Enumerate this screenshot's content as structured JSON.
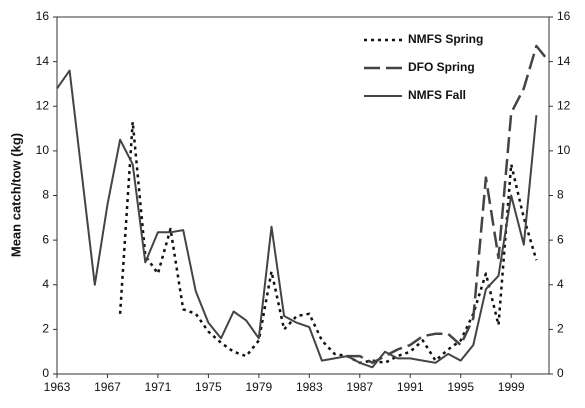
{
  "chart_data": {
    "type": "line",
    "y_label": "Mean catch/tow (kg)",
    "x": [
      1963,
      1964,
      1965,
      1966,
      1967,
      1968,
      1969,
      1970,
      1971,
      1972,
      1973,
      1974,
      1975,
      1976,
      1977,
      1978,
      1979,
      1980,
      1981,
      1982,
      1983,
      1984,
      1985,
      1986,
      1987,
      1988,
      1989,
      1990,
      1991,
      1992,
      1993,
      1994,
      1995,
      1996,
      1997,
      1998,
      1999,
      2000,
      2001,
      2002
    ],
    "series": [
      {
        "name": "NMFS Spring",
        "color": "#111111",
        "values": [
          null,
          null,
          null,
          null,
          null,
          2.7,
          11.3,
          5.3,
          4.5,
          6.5,
          2.9,
          2.7,
          1.9,
          1.4,
          1.0,
          0.8,
          1.5,
          4.6,
          2.0,
          2.6,
          2.7,
          1.5,
          0.9,
          0.8,
          0.5,
          0.6,
          0.5,
          0.8,
          1.0,
          1.5,
          0.6,
          1.1,
          1.5,
          2.7,
          4.5,
          2.2,
          9.4,
          7.0,
          5.1,
          null
        ]
      },
      {
        "name": "DFO Spring",
        "color": "#444444",
        "values": [
          null,
          null,
          null,
          null,
          null,
          null,
          null,
          null,
          null,
          null,
          null,
          null,
          null,
          null,
          null,
          null,
          null,
          null,
          null,
          null,
          null,
          null,
          null,
          0.8,
          0.8,
          0.5,
          0.8,
          1.1,
          1.3,
          1.7,
          1.8,
          1.8,
          1.3,
          2.5,
          8.8,
          5.2,
          11.7,
          12.8,
          14.7,
          14.0
        ]
      },
      {
        "name": "NMFS Fall",
        "color": "#444444",
        "values": [
          12.8,
          13.6,
          8.8,
          4.0,
          7.6,
          10.5,
          9.4,
          5.0,
          6.35,
          6.35,
          6.45,
          3.7,
          2.3,
          1.6,
          2.8,
          2.4,
          1.6,
          6.6,
          2.6,
          2.3,
          2.1,
          0.6,
          0.7,
          0.8,
          0.5,
          0.3,
          1.0,
          0.7,
          0.7,
          0.6,
          0.5,
          0.9,
          0.6,
          1.3,
          3.8,
          4.4,
          8.0,
          5.8,
          11.6,
          null
        ]
      }
    ],
    "xlim": [
      1963,
      2002
    ],
    "xticks": [
      1963,
      1967,
      1971,
      1975,
      1979,
      1983,
      1987,
      1991,
      1995,
      1999
    ],
    "ylim": [
      0,
      16
    ],
    "yticks": [
      0,
      2,
      4,
      6,
      8,
      10,
      12,
      14,
      16
    ],
    "y2lim": [
      0,
      16
    ],
    "y2ticks": [
      0,
      2,
      4,
      6,
      8,
      10,
      12,
      14,
      16
    ],
    "legend": "upper right"
  }
}
